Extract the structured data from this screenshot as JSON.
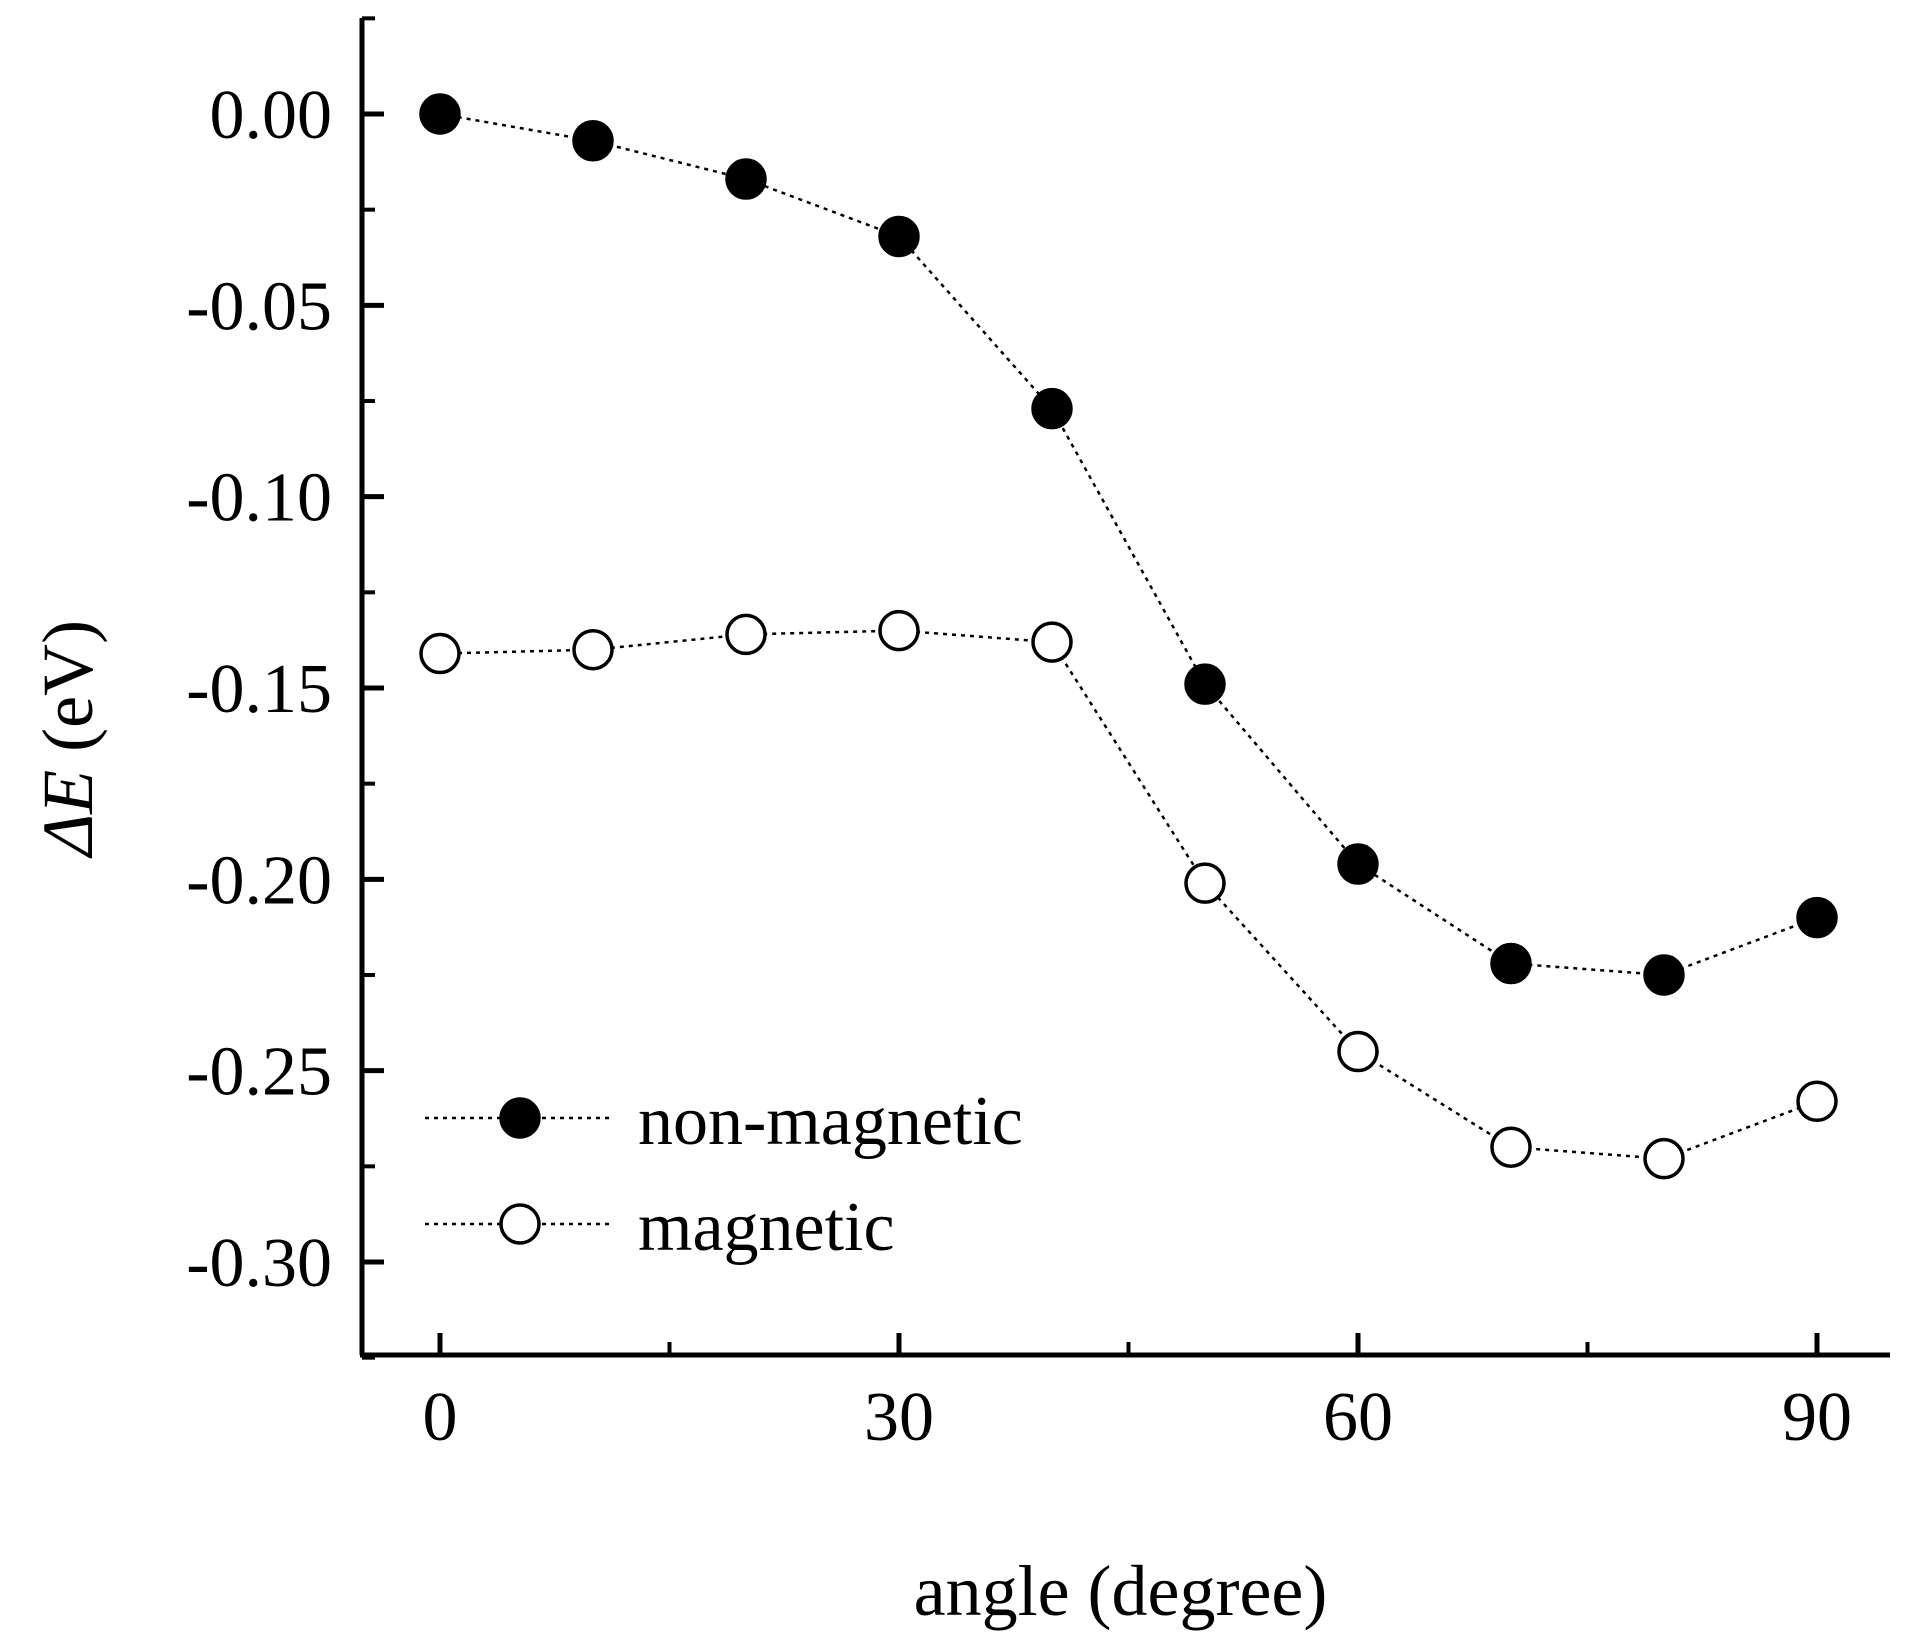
{
  "chart_data": {
    "type": "line",
    "title": "",
    "xlabel": "angle (degree)",
    "ylabel_symbol": "ΔE",
    "ylabel_unit": " (eV)",
    "xlim": [
      -5,
      95
    ],
    "ylim": [
      -0.325,
      0.025
    ],
    "xticks": [
      0,
      30,
      60,
      90
    ],
    "xtick_labels": [
      "0",
      "30",
      "60",
      "90"
    ],
    "xminor_ticks": [
      15,
      45,
      75
    ],
    "yticks": [
      0.0,
      -0.05,
      -0.1,
      -0.15,
      -0.2,
      -0.25,
      -0.3
    ],
    "ytick_labels": [
      "0.00",
      "-0.05",
      "-0.10",
      "-0.15",
      "-0.20",
      "-0.25",
      "-0.30"
    ],
    "yminor_ticks": [
      0.025,
      -0.025,
      -0.075,
      -0.125,
      -0.175,
      -0.225,
      -0.275,
      -0.325
    ],
    "grid": false,
    "legend_position": "bottom-left",
    "x": [
      0,
      10,
      20,
      30,
      40,
      50,
      60,
      70,
      80,
      90
    ],
    "series": [
      {
        "name": "non-magnetic",
        "marker": "filled-circle",
        "values": [
          0.0,
          -0.007,
          -0.017,
          -0.032,
          -0.077,
          -0.149,
          -0.196,
          -0.222,
          -0.225,
          -0.21
        ]
      },
      {
        "name": "magnetic",
        "marker": "open-circle",
        "values": [
          -0.141,
          -0.14,
          -0.136,
          -0.135,
          -0.138,
          -0.201,
          -0.245,
          -0.27,
          -0.273,
          -0.258
        ]
      }
    ]
  },
  "colors": {
    "axis": "#000000",
    "marker_fill_filled": "#000000",
    "marker_fill_open": "#ffffff",
    "line": "#000000",
    "background": "#ffffff"
  }
}
